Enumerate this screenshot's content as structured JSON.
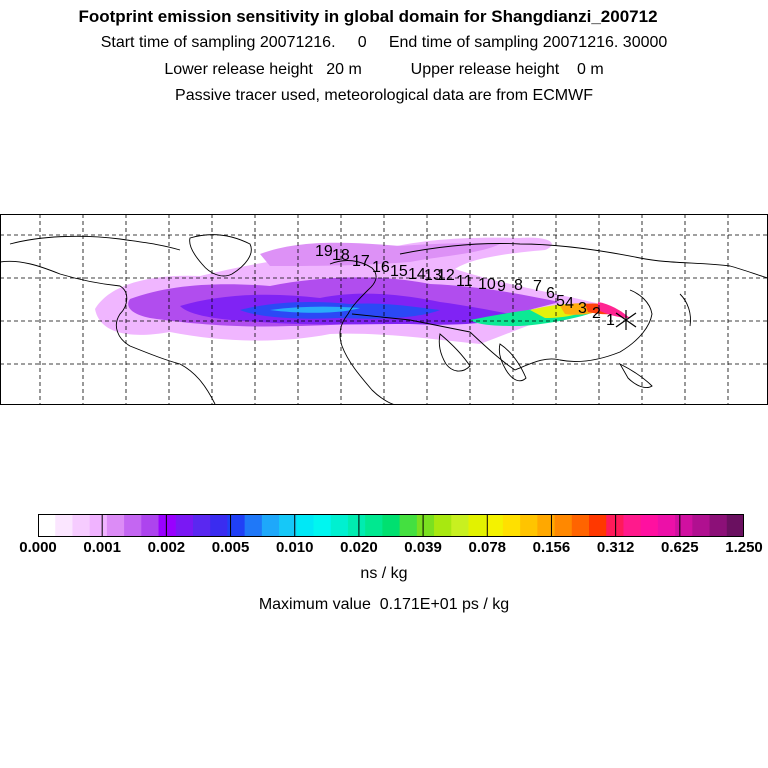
{
  "header": {
    "title": "Footprint emission sensitivity in global domain for Shangdianzi_200712",
    "line_sampling": "Start time of sampling 20071216.     0     End time of sampling 20071216. 30000",
    "line_release": "Lower release height   20 m           Upper release height    0 m",
    "line_tracer": "Passive tracer used, meteorological data are from ECMWF"
  },
  "map": {
    "domain": "global",
    "projection": "equirectangular",
    "grid_color": "#000000",
    "coast_color": "#000000",
    "release_marker": "x-marker",
    "trajectory_labels": [
      "1",
      "2",
      "3",
      "4",
      "5",
      "6",
      "7",
      "8",
      "9",
      "10",
      "11",
      "12",
      "13",
      "14",
      "15",
      "16",
      "17",
      "18",
      "19"
    ]
  },
  "colorbar": {
    "colors": [
      "#ffffff",
      "#fbe6ff",
      "#f6ccff",
      "#f0b3ff",
      "#dc8cf6",
      "#c466f2",
      "#ad44ee",
      "#9900ff",
      "#7a18f4",
      "#5a28f0",
      "#3a2cf0",
      "#2040f6",
      "#1f78f8",
      "#1ea8fa",
      "#16c8f8",
      "#00e8f6",
      "#00f6f0",
      "#00f0d0",
      "#00ecb0",
      "#00e890",
      "#00e070",
      "#44e040",
      "#7ae020",
      "#a8e810",
      "#c8f020",
      "#e2f200",
      "#f4f200",
      "#ffe000",
      "#ffc400",
      "#ffa800",
      "#ff8800",
      "#ff6400",
      "#ff3800",
      "#ff1a5a",
      "#ff1a8c",
      "#ff10a0",
      "#ec10a8",
      "#d010a0",
      "#b01090",
      "#8c1078",
      "#6a1060"
    ],
    "tick_labels": [
      "0.000",
      "0.001",
      "0.002",
      "0.005",
      "0.010",
      "0.020",
      "0.039",
      "0.078",
      "0.156",
      "0.312",
      "0.625",
      "1.250"
    ]
  },
  "footer": {
    "unit": "ns / kg",
    "max_value": "Maximum value  0.171E+01 ps / kg"
  }
}
